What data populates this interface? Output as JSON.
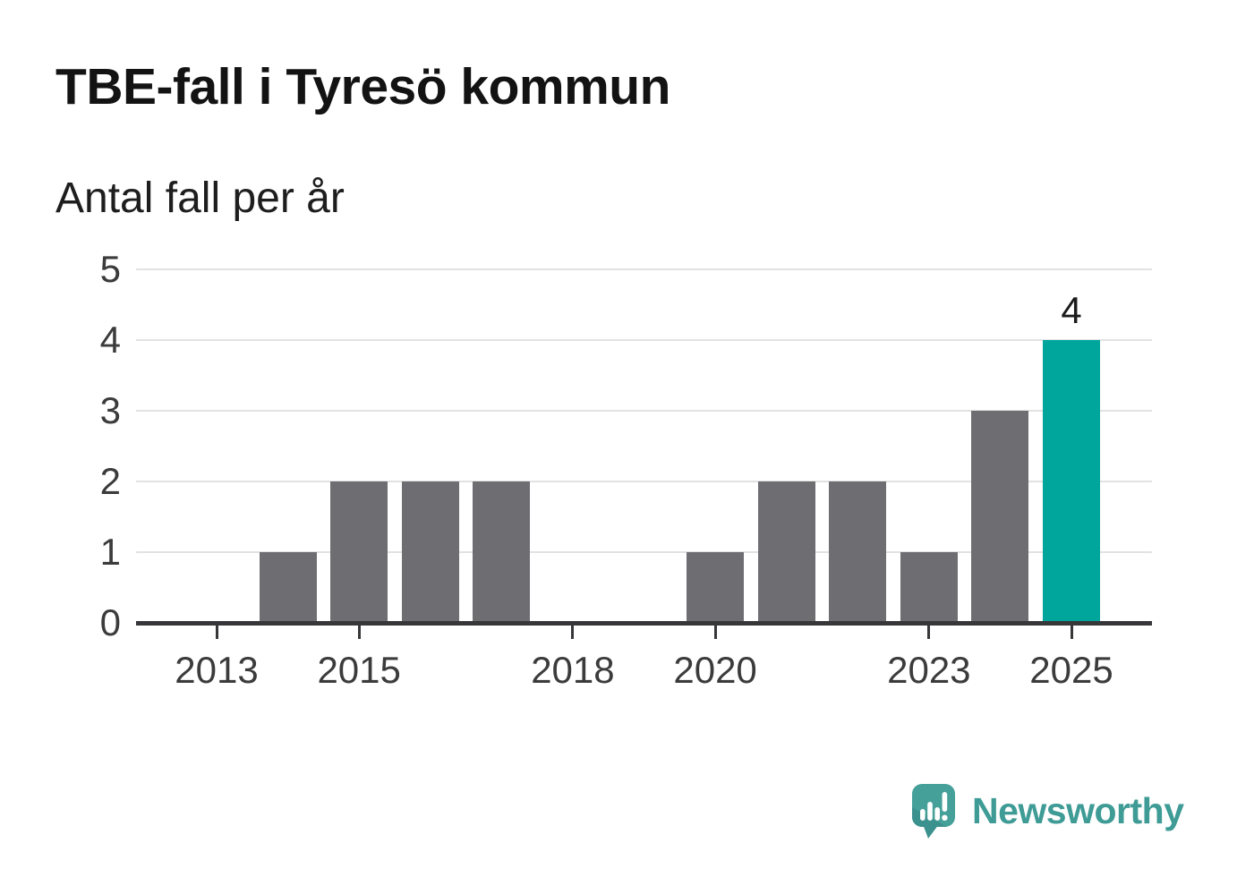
{
  "header": {
    "title": "TBE-fall i Tyresö kommun",
    "subtitle": "Antal fall per år"
  },
  "chart_data": {
    "type": "bar",
    "title": "TBE-fall i Tyresö kommun",
    "subtitle": "Antal fall per år",
    "ylabel": "Antal fall per år",
    "xlabel": "",
    "categories": [
      "2013",
      "2014",
      "2015",
      "2016",
      "2017",
      "2018",
      "2019",
      "2020",
      "2021",
      "2022",
      "2023",
      "2024",
      "2025"
    ],
    "values": [
      0,
      1,
      2,
      2,
      2,
      0,
      0,
      1,
      2,
      2,
      1,
      3,
      4
    ],
    "ylim": [
      0,
      5
    ],
    "y_ticks": [
      0,
      1,
      2,
      3,
      4,
      5
    ],
    "x_tick_labels": [
      "2013",
      "2015",
      "2018",
      "2020",
      "2023",
      "2025"
    ],
    "grid": "horizontal",
    "legend": "none",
    "bar_color": "#6e6d72",
    "highlight_category": "2025",
    "highlight_color": "#00a69c",
    "value_labels": [
      {
        "category": "2025",
        "text": "4"
      }
    ],
    "grid_color": "#e2e2e2",
    "axis_color": "#37373a",
    "tick_label_color": "#3b3b3b"
  },
  "footer": {
    "brand": "Newsworthy",
    "brand_color": "#3e9b95",
    "logo_icon": "speech-bubble-bar-chart",
    "logo_bubble_color": "#46a09a",
    "logo_shade_color": "#3a918d"
  }
}
